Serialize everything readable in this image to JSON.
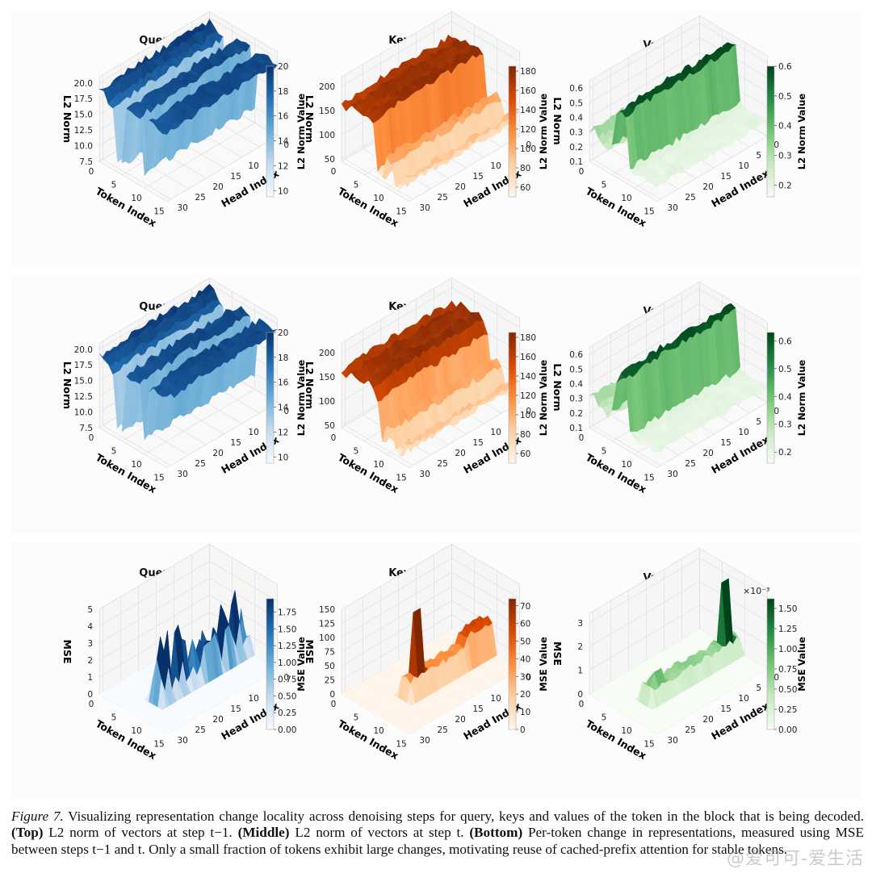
{
  "chart_data": [
    {
      "type": "surface3d",
      "row": "top",
      "title": "Query (Q)",
      "xlabel": "Token Index",
      "ylabel": "Head Index",
      "zlabel": "L2 Norm",
      "xticks": [
        "0",
        "5",
        "10",
        "15"
      ],
      "yticks": [
        "0",
        "5",
        "10",
        "15",
        "20",
        "25",
        "30"
      ],
      "zticks": [
        "7.5",
        "10.0",
        "12.5",
        "15.0",
        "17.5",
        "20.0"
      ],
      "zlim": [
        7.5,
        21
      ],
      "colorbar": {
        "label": "L2 Norm Value",
        "ticks": [
          "10",
          "12",
          "14",
          "16",
          "18",
          "20"
        ],
        "range": [
          9.5,
          20
        ],
        "cmap": "Blues"
      },
      "profile": {
        "token_levels": [
          19.5,
          19.5,
          18.5,
          18,
          9,
          9,
          19,
          19,
          19,
          19,
          10,
          19,
          19,
          19,
          19,
          19
        ],
        "head_pattern": "ripple"
      }
    },
    {
      "type": "surface3d",
      "row": "top",
      "title": "Key (K)",
      "xlabel": "Token Index",
      "ylabel": "Head Index",
      "zlabel": "L2 Norm",
      "xticks": [
        "0",
        "5",
        "10",
        "15"
      ],
      "yticks": [
        "0",
        "5",
        "10",
        "15",
        "20",
        "25",
        "30"
      ],
      "zticks": [
        "50",
        "100",
        "150",
        "200"
      ],
      "zlim": [
        45,
        220
      ],
      "colorbar": {
        "label": "L2 Norm Value",
        "ticks": [
          "60",
          "80",
          "100",
          "120",
          "140",
          "160",
          "180"
        ],
        "range": [
          50,
          185
        ],
        "cmap": "Oranges"
      },
      "profile": {
        "token_levels": [
          170,
          165,
          175,
          180,
          170,
          175,
          180,
          175,
          70,
          60,
          110,
          100,
          60,
          60,
          90,
          90
        ],
        "head_pattern": "ripple"
      }
    },
    {
      "type": "surface3d",
      "row": "top",
      "title": "Value (V)",
      "xlabel": "Token Index",
      "ylabel": "Head Index",
      "zlabel": "L2 Norm",
      "xticks": [
        "0",
        "5",
        "10",
        "15"
      ],
      "yticks": [
        "0",
        "5",
        "10",
        "15",
        "20",
        "25",
        "30"
      ],
      "zticks": [
        "0.1",
        "0.2",
        "0.3",
        "0.4",
        "0.5",
        "0.6"
      ],
      "zlim": [
        0.1,
        0.65
      ],
      "colorbar": {
        "label": "L2 Norm Value",
        "ticks": [
          "0.2",
          "0.3",
          "0.4",
          "0.5",
          "0.6"
        ],
        "range": [
          0.16,
          0.6
        ],
        "cmap": "Greens"
      },
      "profile": {
        "token_levels": [
          0.3,
          0.35,
          0.3,
          0.28,
          0.25,
          0.3,
          0.55,
          0.6,
          0.58,
          0.22,
          0.2,
          0.2,
          0.2,
          0.2,
          0.2,
          0.2
        ],
        "head_pattern": "ripple"
      }
    },
    {
      "type": "surface3d",
      "row": "middle",
      "title": "Query (Q)",
      "xlabel": "Token Index",
      "ylabel": "Head Index",
      "zlabel": "L2 Norm",
      "xticks": [
        "0",
        "5",
        "10",
        "15"
      ],
      "yticks": [
        "0",
        "5",
        "10",
        "15",
        "20",
        "25",
        "30"
      ],
      "zticks": [
        "7.5",
        "10.0",
        "12.5",
        "15.0",
        "17.5",
        "20.0"
      ],
      "zlim": [
        7.5,
        21
      ],
      "colorbar": {
        "label": "L2 Norm Value",
        "ticks": [
          "10",
          "12",
          "14",
          "16",
          "18",
          "20"
        ],
        "range": [
          9.5,
          20
        ],
        "cmap": "Blues"
      },
      "profile": {
        "token_levels": [
          19.5,
          19.5,
          18.5,
          18,
          9,
          9,
          19,
          19,
          19,
          19,
          10,
          19,
          19,
          19,
          19,
          19
        ],
        "head_pattern": "ripple"
      }
    },
    {
      "type": "surface3d",
      "row": "middle",
      "title": "Key (K)",
      "xlabel": "Token Index",
      "ylabel": "Head Index",
      "zlabel": "L2 Norm",
      "xticks": [
        "0",
        "5",
        "10",
        "15"
      ],
      "yticks": [
        "0",
        "5",
        "10",
        "15",
        "20",
        "25",
        "30"
      ],
      "zticks": [
        "50",
        "100",
        "150",
        "200"
      ],
      "zlim": [
        45,
        220
      ],
      "colorbar": {
        "label": "L2 Norm Value",
        "ticks": [
          "60",
          "80",
          "100",
          "120",
          "140",
          "160",
          "180"
        ],
        "range": [
          50,
          185
        ],
        "cmap": "Oranges"
      },
      "profile": {
        "token_levels": [
          170,
          165,
          175,
          180,
          170,
          175,
          180,
          175,
          150,
          60,
          110,
          100,
          60,
          60,
          90,
          90
        ],
        "head_pattern": "ripple"
      }
    },
    {
      "type": "surface3d",
      "row": "middle",
      "title": "Value (V)",
      "xlabel": "Token Index",
      "ylabel": "Head Index",
      "zlabel": "L2 Norm",
      "xticks": [
        "0",
        "5",
        "10",
        "15"
      ],
      "yticks": [
        "0",
        "5",
        "10",
        "15",
        "20",
        "25",
        "30"
      ],
      "zticks": [
        "0.1",
        "0.2",
        "0.3",
        "0.4",
        "0.5",
        "0.6"
      ],
      "zlim": [
        0.1,
        0.65
      ],
      "colorbar": {
        "label": "L2 Norm Value",
        "ticks": [
          "0.2",
          "0.3",
          "0.4",
          "0.5",
          "0.6"
        ],
        "range": [
          0.16,
          0.63
        ],
        "cmap": "Greens"
      },
      "profile": {
        "token_levels": [
          0.3,
          0.35,
          0.3,
          0.28,
          0.25,
          0.3,
          0.55,
          0.62,
          0.6,
          0.22,
          0.2,
          0.2,
          0.2,
          0.2,
          0.2,
          0.2
        ],
        "head_pattern": "ripple"
      }
    },
    {
      "type": "surface3d",
      "row": "bottom",
      "title": "Query (Q)",
      "xlabel": "Token Index",
      "ylabel": "Head Index",
      "zlabel": "MSE",
      "xticks": [
        "0",
        "5",
        "10",
        "15"
      ],
      "yticks": [
        "0",
        "5",
        "10",
        "15",
        "20",
        "25",
        "30"
      ],
      "zticks": [
        "0",
        "1",
        "2",
        "3",
        "4",
        "5"
      ],
      "zlim": [
        0,
        5
      ],
      "colorbar": {
        "label": "MSE Value",
        "ticks": [
          "0.00",
          "0.25",
          "0.50",
          "0.75",
          "1.00",
          "1.25",
          "1.50",
          "1.75"
        ],
        "range": [
          0,
          1.95
        ],
        "cmap": "Blues"
      },
      "profile": {
        "token_levels": [
          0,
          0,
          0,
          0,
          0,
          0,
          0,
          0,
          2.5,
          0,
          0,
          0,
          0,
          0,
          0,
          0
        ],
        "head_pattern": "spiky",
        "peak": 4.4
      }
    },
    {
      "type": "surface3d",
      "row": "bottom",
      "title": "Key (K)",
      "xlabel": "Token Index",
      "ylabel": "Head Index",
      "zlabel": "MSE",
      "xticks": [
        "0",
        "5",
        "10",
        "15"
      ],
      "yticks": [
        "0",
        "5",
        "10",
        "15",
        "20",
        "25",
        "30"
      ],
      "zticks": [
        "0",
        "25",
        "50",
        "75",
        "100",
        "125",
        "150"
      ],
      "zlim": [
        0,
        150
      ],
      "colorbar": {
        "label": "MSE Value",
        "ticks": [
          "0",
          "10",
          "20",
          "30",
          "40",
          "50",
          "60",
          "70"
        ],
        "range": [
          0,
          74
        ],
        "cmap": "Oranges"
      },
      "profile": {
        "token_levels": [
          0,
          0,
          0,
          0,
          0,
          0,
          0,
          0,
          40,
          0,
          0,
          0,
          0,
          0,
          0,
          0
        ],
        "head_pattern": "single-spike",
        "peak": 145
      }
    },
    {
      "type": "surface3d",
      "row": "bottom",
      "title": "Value (V)",
      "xlabel": "Token Index",
      "ylabel": "Head Index",
      "zlabel": "MSE",
      "xticks": [
        "0",
        "5",
        "10",
        "15"
      ],
      "yticks": [
        "0",
        "5",
        "10",
        "15",
        "20",
        "25",
        "30"
      ],
      "zticks": [
        "0",
        "1",
        "2",
        "3"
      ],
      "zlim": [
        0,
        3.4
      ],
      "zscale_label": "×10⁻³",
      "colorbar": {
        "label": "MSE Value",
        "ticks": [
          "0.00",
          "0.25",
          "0.50",
          "0.75",
          "1.00",
          "1.25",
          "1.50"
        ],
        "range": [
          0,
          1.62
        ],
        "cmap": "Greens",
        "offset_label": "×10⁻³"
      },
      "profile": {
        "token_levels": [
          0,
          0,
          0,
          0,
          0,
          0,
          0,
          0,
          0.6,
          0,
          0,
          0,
          0,
          0,
          0,
          0
        ],
        "head_pattern": "late-spike",
        "peak": 3.2
      }
    }
  ],
  "caption": {
    "figure_label": "Figure 7.",
    "intro": " Visualizing representation change locality across denoising steps for query, keys and values of the token in the block that is being decoded. ",
    "top_label": "(Top)",
    "top_text": " L2 norm of vectors at step t−1. ",
    "middle_label": "(Middle)",
    "middle_text": " L2 norm of vectors at step t. ",
    "bottom_label": "(Bottom)",
    "bottom_text": " Per-token change in representations, measured using MSE between steps t−1 and t. Only a small fraction of tokens exhibit large changes, motivating reuse of cached-prefix attention for stable tokens."
  },
  "watermark": "@爱可可-爱生活",
  "colors": {
    "Blues": [
      "#f7fbff",
      "#c6dbef",
      "#6baed6",
      "#2171b5",
      "#08306b"
    ],
    "Oranges": [
      "#fff5eb",
      "#fdd0a2",
      "#fd8d3c",
      "#d94801",
      "#7f2704"
    ],
    "Greens": [
      "#f7fcf5",
      "#c7e9c0",
      "#74c476",
      "#238b45",
      "#00441b"
    ]
  }
}
